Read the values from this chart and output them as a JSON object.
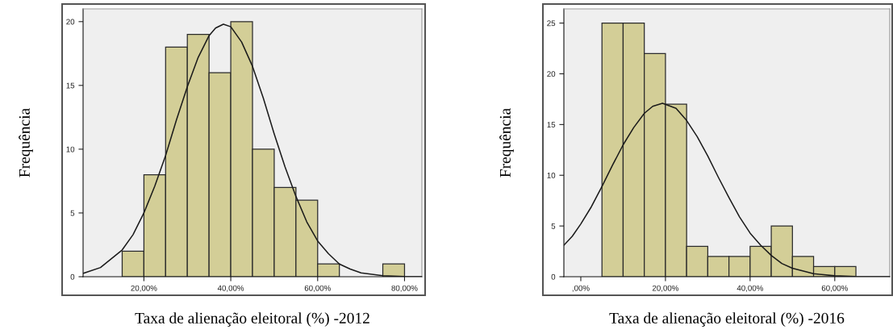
{
  "chart_data": [
    {
      "type": "histogram",
      "xlabel": "Taxa de alienação eleitoral (%) -2012",
      "ylabel": "Frequência",
      "color": "#d3ce97",
      "grid": false,
      "bins": [
        15,
        20,
        25,
        30,
        35,
        40,
        45,
        50,
        55,
        60,
        65,
        70,
        75,
        80
      ],
      "values": [
        2,
        8,
        18,
        19,
        16,
        20,
        10,
        7,
        6,
        1,
        0,
        0,
        1
      ],
      "xlim": [
        6,
        84
      ],
      "xticks": [
        {
          "value": 20,
          "label": "20,00%"
        },
        {
          "value": 40,
          "label": "40,00%"
        },
        {
          "value": 60,
          "label": "60,00%"
        },
        {
          "value": 80,
          "label": "80,00%"
        }
      ],
      "ylim": [
        0,
        21
      ],
      "yticks": [
        0,
        5,
        10,
        15,
        20
      ],
      "series": [
        {
          "type": "line",
          "color": "#1a1a1a",
          "x": [
            6,
            10,
            15,
            17.5,
            20,
            22.5,
            25,
            27.5,
            30,
            32.5,
            35,
            36.5,
            38.3,
            40,
            42.5,
            45,
            47.5,
            50,
            52.5,
            55,
            57.5,
            60,
            62.5,
            65,
            67.5,
            70,
            75,
            80,
            84
          ],
          "values": [
            0.26,
            0.72,
            2.1,
            3.3,
            5.0,
            7.1,
            9.5,
            12.3,
            14.9,
            17.2,
            18.9,
            19.5,
            19.8,
            19.6,
            18.4,
            16.5,
            14.0,
            11.2,
            8.6,
            6.3,
            4.3,
            2.8,
            1.8,
            1.0,
            0.6,
            0.3,
            0.08,
            0.01,
            0
          ]
        }
      ]
    },
    {
      "type": "histogram",
      "xlabel": "Taxa de alienação eleitoral (%) -2016",
      "ylabel": "Frequência",
      "color": "#d3ce97",
      "grid": false,
      "bins": [
        5,
        10,
        15,
        20,
        25,
        30,
        35,
        40,
        45,
        50,
        55,
        60,
        65
      ],
      "values": [
        25,
        25,
        22,
        17,
        3,
        2,
        2,
        3,
        5,
        2,
        1,
        1
      ],
      "xlim": [
        -4,
        73
      ],
      "xticks": [
        {
          "value": 0,
          "label": ",00%"
        },
        {
          "value": 20,
          "label": "20,00%"
        },
        {
          "value": 40,
          "label": "40,00%"
        },
        {
          "value": 60,
          "label": "60,00%"
        }
      ],
      "ylim": [
        0,
        26.4
      ],
      "yticks": [
        0,
        5,
        10,
        15,
        20,
        25
      ],
      "series": [
        {
          "type": "line",
          "color": "#1a1a1a",
          "x": [
            -4,
            -2,
            0,
            2.5,
            5,
            7.5,
            10,
            12.5,
            15,
            17,
            19.3,
            22.5,
            25,
            27.5,
            30,
            32.5,
            35,
            37.5,
            40,
            42.5,
            45,
            47.5,
            50,
            55,
            60,
            65,
            73
          ],
          "values": [
            3.1,
            4.0,
            5.2,
            6.9,
            8.9,
            11.0,
            13.0,
            14.7,
            16.1,
            16.8,
            17.1,
            16.6,
            15.4,
            13.8,
            11.9,
            9.8,
            7.8,
            5.9,
            4.3,
            3.1,
            2.1,
            1.3,
            0.84,
            0.29,
            0.09,
            0.02,
            0
          ]
        }
      ]
    }
  ]
}
